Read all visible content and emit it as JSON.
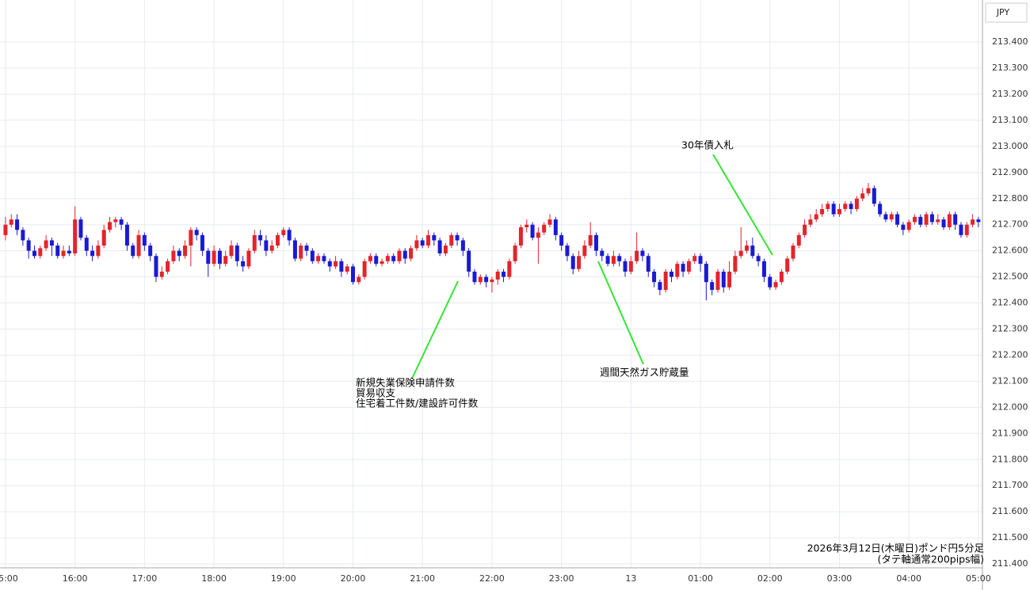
{
  "chart_data": {
    "type": "candlestick",
    "currency": "JPY",
    "caption": [
      "2026年3月12日(木曜日)ポンド円5分足",
      "(タテ軸通常200pips幅)"
    ],
    "annotations": [
      {
        "lines": [
          "新規失業保険申請件数",
          "貿易収支",
          "住宅着工件数/建設許可件数"
        ]
      },
      {
        "lines": [
          "週間天然ガス貯蔵量"
        ]
      },
      {
        "lines": [
          "30年債入札"
        ]
      }
    ],
    "up_color": "#e3242b",
    "down_color": "#1a1ad4",
    "grid": true,
    "xlim": [
      -0.95,
      168.7
    ],
    "xticks": [
      {
        "value": 0,
        "label": "15:00"
      },
      {
        "value": 12,
        "label": "16:00"
      },
      {
        "value": 24,
        "label": "17:00"
      },
      {
        "value": 36,
        "label": "18:00"
      },
      {
        "value": 48,
        "label": "19:00"
      },
      {
        "value": 60,
        "label": "20:00"
      },
      {
        "value": 72,
        "label": "21:00"
      },
      {
        "value": 84,
        "label": "22:00"
      },
      {
        "value": 96,
        "label": "23:00"
      },
      {
        "value": 108,
        "label": "13"
      },
      {
        "value": 120,
        "label": "01:00"
      },
      {
        "value": 132,
        "label": "02:00"
      },
      {
        "value": 144,
        "label": "03:00"
      },
      {
        "value": 156,
        "label": "04:00"
      },
      {
        "value": 168,
        "label": "05:00"
      }
    ],
    "ylim": [
      211.385,
      213.561
    ],
    "yticks": [
      {
        "value": 211.4,
        "label": "211.400"
      },
      {
        "value": 211.5,
        "label": "211.500"
      },
      {
        "value": 211.6,
        "label": "211.600"
      },
      {
        "value": 211.7,
        "label": "211.700"
      },
      {
        "value": 211.8,
        "label": "211.800"
      },
      {
        "value": 211.9,
        "label": "211.900"
      },
      {
        "value": 212.0,
        "label": "212.000"
      },
      {
        "value": 212.1,
        "label": "212.100"
      },
      {
        "value": 212.2,
        "label": "212.200"
      },
      {
        "value": 212.3,
        "label": "212.300"
      },
      {
        "value": 212.4,
        "label": "212.400"
      },
      {
        "value": 212.5,
        "label": "212.500"
      },
      {
        "value": 212.6,
        "label": "212.600"
      },
      {
        "value": 212.7,
        "label": "212.700"
      },
      {
        "value": 212.8,
        "label": "212.800"
      },
      {
        "value": 212.9,
        "label": "212.900"
      },
      {
        "value": 213.0,
        "label": "213.000"
      },
      {
        "value": 213.1,
        "label": "213.100"
      },
      {
        "value": 213.2,
        "label": "213.200"
      },
      {
        "value": 213.3,
        "label": "213.300"
      },
      {
        "value": 213.4,
        "label": "213.400"
      }
    ],
    "ohlc": [
      [
        212.66,
        212.73,
        212.64,
        212.7
      ],
      [
        212.7,
        212.74,
        212.69,
        212.72
      ],
      [
        212.72,
        212.74,
        212.66,
        212.68
      ],
      [
        212.68,
        212.69,
        212.62,
        212.64
      ],
      [
        212.64,
        212.65,
        212.57,
        212.6
      ],
      [
        212.6,
        212.62,
        212.57,
        212.58
      ],
      [
        212.58,
        212.62,
        212.57,
        212.61
      ],
      [
        212.61,
        212.66,
        212.6,
        212.64
      ],
      [
        212.64,
        212.65,
        212.58,
        212.62
      ],
      [
        212.62,
        212.63,
        212.57,
        212.58
      ],
      [
        212.58,
        212.62,
        212.57,
        212.6
      ],
      [
        212.6,
        212.62,
        212.58,
        212.59
      ],
      [
        212.59,
        212.77,
        212.58,
        212.72
      ],
      [
        212.72,
        212.73,
        212.64,
        212.65
      ],
      [
        212.65,
        212.66,
        212.58,
        212.6
      ],
      [
        212.6,
        212.62,
        212.56,
        212.58
      ],
      [
        212.58,
        212.64,
        212.57,
        212.62
      ],
      [
        212.62,
        212.7,
        212.61,
        212.68
      ],
      [
        212.68,
        212.73,
        212.67,
        212.71
      ],
      [
        212.71,
        212.73,
        212.69,
        212.72
      ],
      [
        212.72,
        212.73,
        212.68,
        212.7
      ],
      [
        212.7,
        212.71,
        212.6,
        212.62
      ],
      [
        212.62,
        212.63,
        212.57,
        212.58
      ],
      [
        212.58,
        212.68,
        212.57,
        212.66
      ],
      [
        212.66,
        212.67,
        212.6,
        212.62
      ],
      [
        212.62,
        212.63,
        212.56,
        212.58
      ],
      [
        212.58,
        212.59,
        212.48,
        212.5
      ],
      [
        212.5,
        212.54,
        212.49,
        212.52
      ],
      [
        212.52,
        212.57,
        212.51,
        212.56
      ],
      [
        212.56,
        212.62,
        212.55,
        212.6
      ],
      [
        212.6,
        212.61,
        212.56,
        212.58
      ],
      [
        212.58,
        212.64,
        212.57,
        212.62
      ],
      [
        212.62,
        212.69,
        212.54,
        212.68
      ],
      [
        212.68,
        212.69,
        212.64,
        212.66
      ],
      [
        212.66,
        212.67,
        212.58,
        212.6
      ],
      [
        212.6,
        212.61,
        212.5,
        212.55
      ],
      [
        212.55,
        212.62,
        212.54,
        212.6
      ],
      [
        212.6,
        212.61,
        212.53,
        212.55
      ],
      [
        212.55,
        212.6,
        212.54,
        212.58
      ],
      [
        212.58,
        212.64,
        212.57,
        212.62
      ],
      [
        212.62,
        212.63,
        212.54,
        212.56
      ],
      [
        212.56,
        212.58,
        212.52,
        212.54
      ],
      [
        212.54,
        212.61,
        212.53,
        212.6
      ],
      [
        212.6,
        212.68,
        212.59,
        212.66
      ],
      [
        212.66,
        212.68,
        212.62,
        212.64
      ],
      [
        212.64,
        212.66,
        212.58,
        212.6
      ],
      [
        212.6,
        212.64,
        212.59,
        212.62
      ],
      [
        212.62,
        212.67,
        212.61,
        212.66
      ],
      [
        212.66,
        212.69,
        212.65,
        212.68
      ],
      [
        212.68,
        212.69,
        212.62,
        212.64
      ],
      [
        212.64,
        212.65,
        212.56,
        212.57
      ],
      [
        212.57,
        212.63,
        212.56,
        212.62
      ],
      [
        212.62,
        212.63,
        212.58,
        212.6
      ],
      [
        212.6,
        212.61,
        212.55,
        212.56
      ],
      [
        212.56,
        212.59,
        212.55,
        212.58
      ],
      [
        212.58,
        212.59,
        212.55,
        212.56
      ],
      [
        212.56,
        212.57,
        212.52,
        212.54
      ],
      [
        212.54,
        212.58,
        212.53,
        212.56
      ],
      [
        212.56,
        212.57,
        212.5,
        212.52
      ],
      [
        212.52,
        212.55,
        212.51,
        212.54
      ],
      [
        212.54,
        212.55,
        212.47,
        212.48
      ],
      [
        212.48,
        212.51,
        212.47,
        212.5
      ],
      [
        212.5,
        212.57,
        212.49,
        212.56
      ],
      [
        212.56,
        212.59,
        212.55,
        212.58
      ],
      [
        212.58,
        212.59,
        212.54,
        212.55
      ],
      [
        212.55,
        212.57,
        212.54,
        212.56
      ],
      [
        212.56,
        212.59,
        212.55,
        212.58
      ],
      [
        212.58,
        212.59,
        212.55,
        212.56
      ],
      [
        212.56,
        212.61,
        212.55,
        212.6
      ],
      [
        212.6,
        212.61,
        212.55,
        212.57
      ],
      [
        212.57,
        212.62,
        212.56,
        212.61
      ],
      [
        212.61,
        212.66,
        212.6,
        212.64
      ],
      [
        212.64,
        212.65,
        212.61,
        212.62
      ],
      [
        212.62,
        212.68,
        212.61,
        212.66
      ],
      [
        212.66,
        212.67,
        212.62,
        212.64
      ],
      [
        212.64,
        212.65,
        212.58,
        212.59
      ],
      [
        212.59,
        212.63,
        212.58,
        212.62
      ],
      [
        212.62,
        212.67,
        212.61,
        212.66
      ],
      [
        212.66,
        212.67,
        212.62,
        212.64
      ],
      [
        212.64,
        212.65,
        212.58,
        212.6
      ],
      [
        212.6,
        212.61,
        212.5,
        212.52
      ],
      [
        212.52,
        212.53,
        212.47,
        212.48
      ],
      [
        212.48,
        212.51,
        212.47,
        212.5
      ],
      [
        212.5,
        212.51,
        212.46,
        212.48
      ],
      [
        212.48,
        212.5,
        212.44,
        212.49
      ],
      [
        212.49,
        212.53,
        212.47,
        212.52
      ],
      [
        212.52,
        212.53,
        212.48,
        212.5
      ],
      [
        212.5,
        212.57,
        212.49,
        212.56
      ],
      [
        212.56,
        212.63,
        212.55,
        212.62
      ],
      [
        212.62,
        212.7,
        212.61,
        212.69
      ],
      [
        212.69,
        212.72,
        212.67,
        212.7
      ],
      [
        212.7,
        212.71,
        212.64,
        212.65
      ],
      [
        212.65,
        212.69,
        212.55,
        212.67
      ],
      [
        212.67,
        212.71,
        212.66,
        212.7
      ],
      [
        212.7,
        212.74,
        212.69,
        212.72
      ],
      [
        212.72,
        212.73,
        212.64,
        212.66
      ],
      [
        212.66,
        212.67,
        212.6,
        212.62
      ],
      [
        212.62,
        212.63,
        212.56,
        212.58
      ],
      [
        212.58,
        212.59,
        212.51,
        212.53
      ],
      [
        212.53,
        212.6,
        212.52,
        212.58
      ],
      [
        212.58,
        212.64,
        212.57,
        212.62
      ],
      [
        212.62,
        212.71,
        212.61,
        212.66
      ],
      [
        212.66,
        212.67,
        212.58,
        212.6
      ],
      [
        212.6,
        212.61,
        212.56,
        212.58
      ],
      [
        212.58,
        212.59,
        212.54,
        212.55
      ],
      [
        212.55,
        212.6,
        212.54,
        212.58
      ],
      [
        212.58,
        212.59,
        212.54,
        212.56
      ],
      [
        212.56,
        212.57,
        212.5,
        212.52
      ],
      [
        212.52,
        212.58,
        212.51,
        212.56
      ],
      [
        212.56,
        212.67,
        212.55,
        212.6
      ],
      [
        212.6,
        212.61,
        212.56,
        212.58
      ],
      [
        212.58,
        212.59,
        212.5,
        212.52
      ],
      [
        212.52,
        212.53,
        212.46,
        212.48
      ],
      [
        212.48,
        212.49,
        212.43,
        212.45
      ],
      [
        212.45,
        212.53,
        212.44,
        212.52
      ],
      [
        212.52,
        212.53,
        212.48,
        212.5
      ],
      [
        212.5,
        212.56,
        212.49,
        212.55
      ],
      [
        212.55,
        212.56,
        212.5,
        212.52
      ],
      [
        212.52,
        212.57,
        212.51,
        212.56
      ],
      [
        212.56,
        212.59,
        212.55,
        212.58
      ],
      [
        212.58,
        212.59,
        212.52,
        212.55
      ],
      [
        212.55,
        212.56,
        212.41,
        212.48
      ],
      [
        212.48,
        212.49,
        212.43,
        212.45
      ],
      [
        212.45,
        212.53,
        212.44,
        212.52
      ],
      [
        212.52,
        212.53,
        212.44,
        212.46
      ],
      [
        212.46,
        212.56,
        212.45,
        212.52
      ],
      [
        212.52,
        212.6,
        212.51,
        212.58
      ],
      [
        212.58,
        212.69,
        212.57,
        212.6
      ],
      [
        212.6,
        212.64,
        212.59,
        212.62
      ],
      [
        212.62,
        212.65,
        212.57,
        212.58
      ],
      [
        212.58,
        212.59,
        212.54,
        212.56
      ],
      [
        212.56,
        212.57,
        212.48,
        212.5
      ],
      [
        212.5,
        212.51,
        212.45,
        212.46
      ],
      [
        212.46,
        212.49,
        212.45,
        212.48
      ],
      [
        212.48,
        212.53,
        212.47,
        212.52
      ],
      [
        212.52,
        212.58,
        212.51,
        212.57
      ],
      [
        212.57,
        212.63,
        212.56,
        212.62
      ],
      [
        212.62,
        212.67,
        212.61,
        212.66
      ],
      [
        212.66,
        212.72,
        212.65,
        212.7
      ],
      [
        212.7,
        212.74,
        212.69,
        212.72
      ],
      [
        212.72,
        212.76,
        212.71,
        212.74
      ],
      [
        212.74,
        212.78,
        212.73,
        212.76
      ],
      [
        212.76,
        212.79,
        212.75,
        212.78
      ],
      [
        212.78,
        212.79,
        212.73,
        212.74
      ],
      [
        212.74,
        212.78,
        212.73,
        212.76
      ],
      [
        212.76,
        212.79,
        212.75,
        212.78
      ],
      [
        212.78,
        212.79,
        212.74,
        212.76
      ],
      [
        212.76,
        212.81,
        212.75,
        212.8
      ],
      [
        212.8,
        212.84,
        212.79,
        212.82
      ],
      [
        212.82,
        212.86,
        212.81,
        212.84
      ],
      [
        212.84,
        212.85,
        212.77,
        212.78
      ],
      [
        212.78,
        212.79,
        212.73,
        212.74
      ],
      [
        212.74,
        212.75,
        212.71,
        212.72
      ],
      [
        212.72,
        212.75,
        212.71,
        212.74
      ],
      [
        212.74,
        212.75,
        212.69,
        212.7
      ],
      [
        212.7,
        212.71,
        212.66,
        212.68
      ],
      [
        212.68,
        212.72,
        212.67,
        212.71
      ],
      [
        212.71,
        212.74,
        212.7,
        212.73
      ],
      [
        212.73,
        212.74,
        212.69,
        212.7
      ],
      [
        212.7,
        212.75,
        212.69,
        212.74
      ],
      [
        212.74,
        212.75,
        212.7,
        212.71
      ],
      [
        212.71,
        212.74,
        212.7,
        212.72
      ],
      [
        212.72,
        212.73,
        212.68,
        212.69
      ],
      [
        212.69,
        212.75,
        212.68,
        212.74
      ],
      [
        212.74,
        212.75,
        212.68,
        212.7
      ],
      [
        212.7,
        212.71,
        212.65,
        212.66
      ],
      [
        212.66,
        212.71,
        212.65,
        212.7
      ],
      [
        212.7,
        212.74,
        212.69,
        212.72
      ],
      [
        212.72,
        212.73,
        212.69,
        212.71
      ]
    ]
  }
}
